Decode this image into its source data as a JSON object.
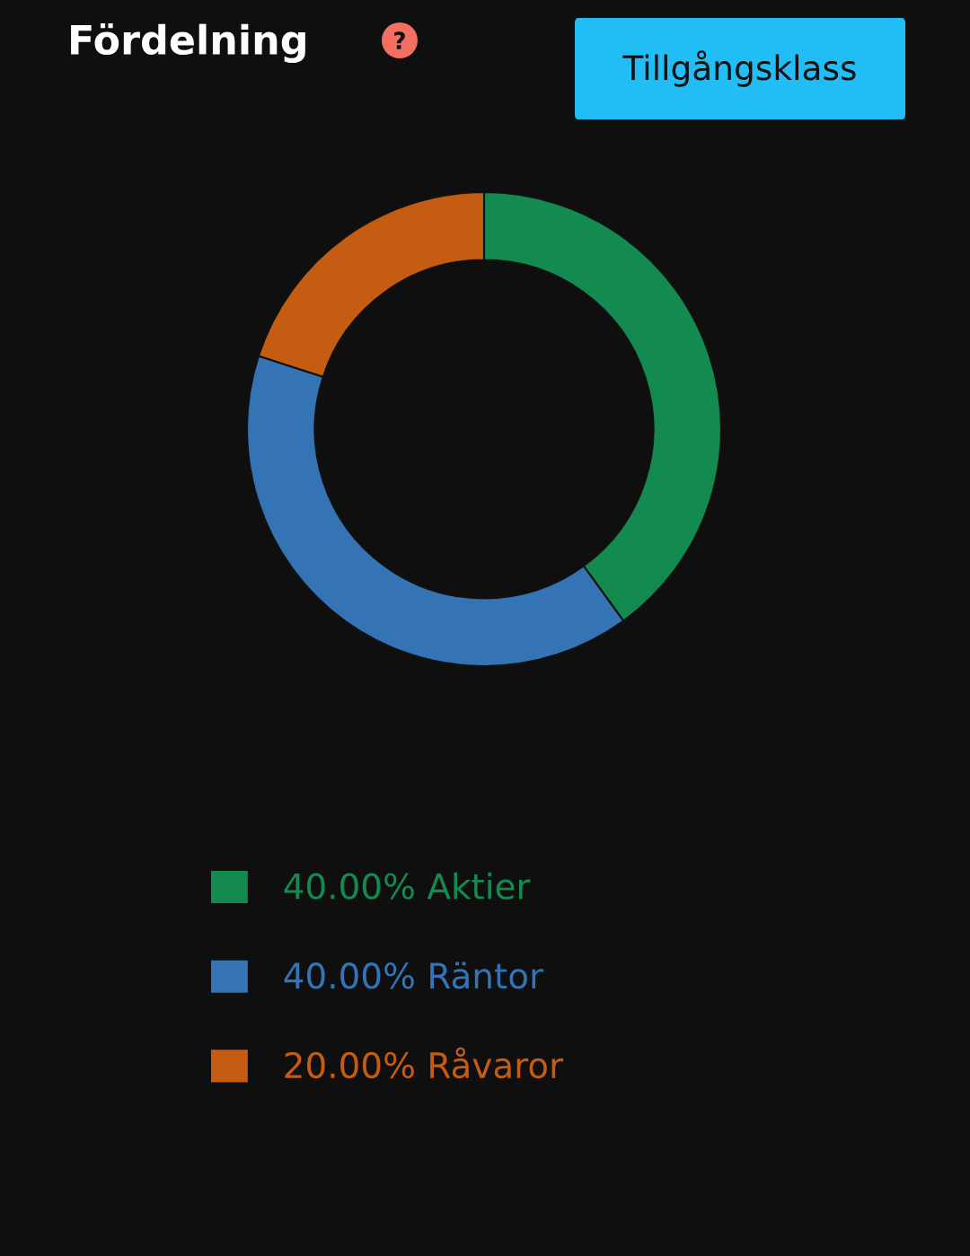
{
  "chart_data": {
    "type": "donut",
    "title": "Fördelning",
    "categories": [
      "Aktier",
      "Räntor",
      "Råvaror"
    ],
    "values": [
      40,
      40,
      20
    ],
    "colors": [
      "#138a50",
      "#3473b4",
      "#c45c11"
    ],
    "value_labels": [
      "40.00%",
      "40.00%",
      "20.00%"
    ],
    "legend": "bottom",
    "annotations": [
      "Tillgångsklass"
    ]
  }
}
